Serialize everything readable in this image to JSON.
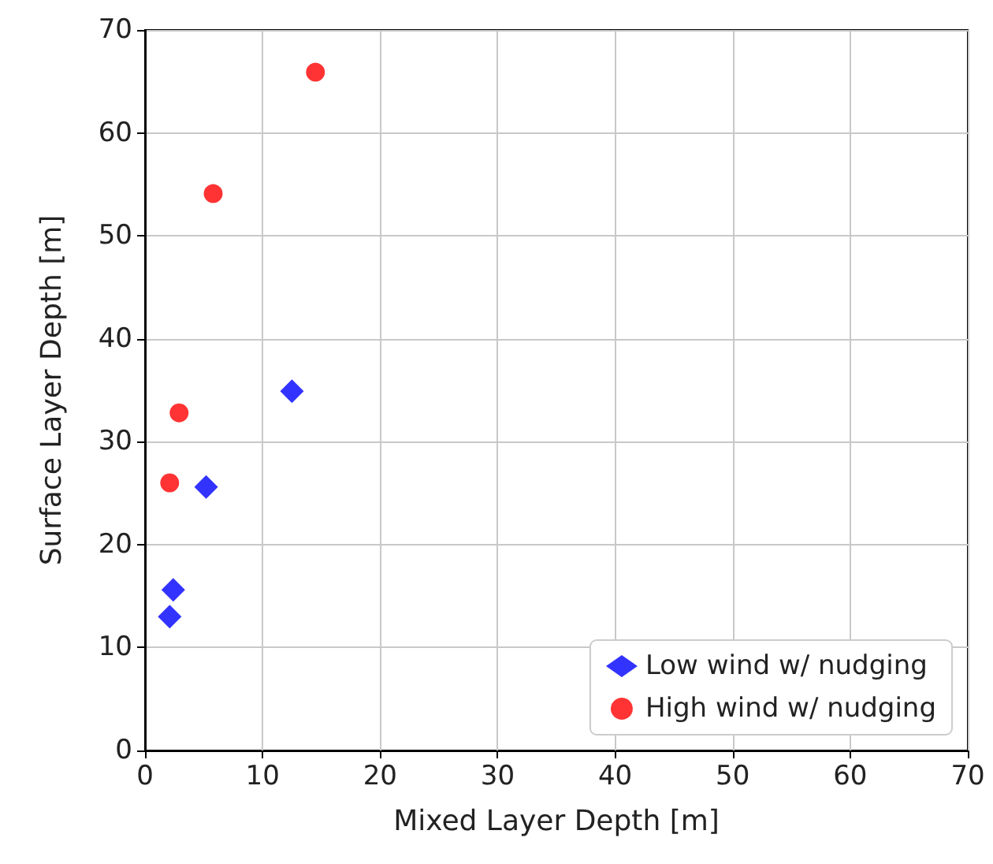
{
  "chart_data": {
    "type": "scatter",
    "xlabel": "Mixed Layer Depth [m]",
    "ylabel": "Surface Layer Depth [m]",
    "xlim": [
      0,
      70
    ],
    "xticks": [
      0,
      10,
      20,
      30,
      40,
      50,
      60,
      70
    ],
    "ylim": [
      0,
      70
    ],
    "yticks": [
      0,
      10,
      20,
      30,
      40,
      50,
      60,
      70
    ],
    "grid": true,
    "legend": "bottom right",
    "series": [
      {
        "name": "Low wind w/ nudging",
        "color": "#0000ff",
        "marker": "diamond",
        "x": [
          2.1,
          2.4,
          5.2,
          12.5
        ],
        "values": [
          13.0,
          15.6,
          25.6,
          34.9
        ]
      },
      {
        "name": "High wind w/ nudging",
        "color": "#ff0000",
        "marker": "circle",
        "x": [
          2.1,
          2.9,
          5.8,
          14.5
        ],
        "values": [
          26.0,
          32.8,
          54.1,
          65.9
        ]
      }
    ]
  }
}
